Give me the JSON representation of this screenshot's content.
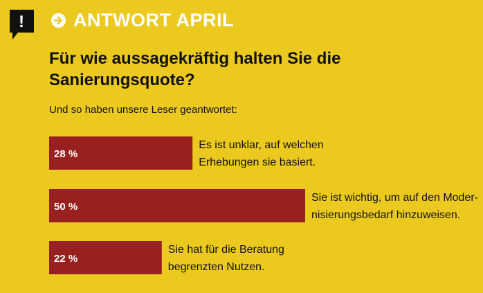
{
  "header": {
    "badge_symbol": "!",
    "arrow_icon": "arrow-right-circle-icon",
    "title": "ANTWORT APRIL"
  },
  "question": "Für wie aussagekräftig halten Sie die Sanierungsquote?",
  "subtitle": "Und so haben unsere Leser geantwortet:",
  "colors": {
    "background": "#ecc91f",
    "bar": "#98201f",
    "badge": "#111111",
    "header_text": "#ffffff"
  },
  "chart_data": {
    "type": "bar",
    "orientation": "horizontal",
    "unit": "%",
    "categories": [
      [
        "Es ist unklar, auf welchen",
        "Erhebungen sie basiert."
      ],
      [
        "Sie ist wichtig, um auf den Moder-",
        "nisierungsbedarf hinzuweisen."
      ],
      [
        "Sie hat für die Beratung",
        "begrenzten Nutzen."
      ]
    ],
    "values": [
      28,
      50,
      22
    ],
    "value_labels": [
      "28 %",
      "50 %",
      "22 %"
    ],
    "xlim": [
      0,
      100
    ],
    "grid": false,
    "legend": "none"
  }
}
